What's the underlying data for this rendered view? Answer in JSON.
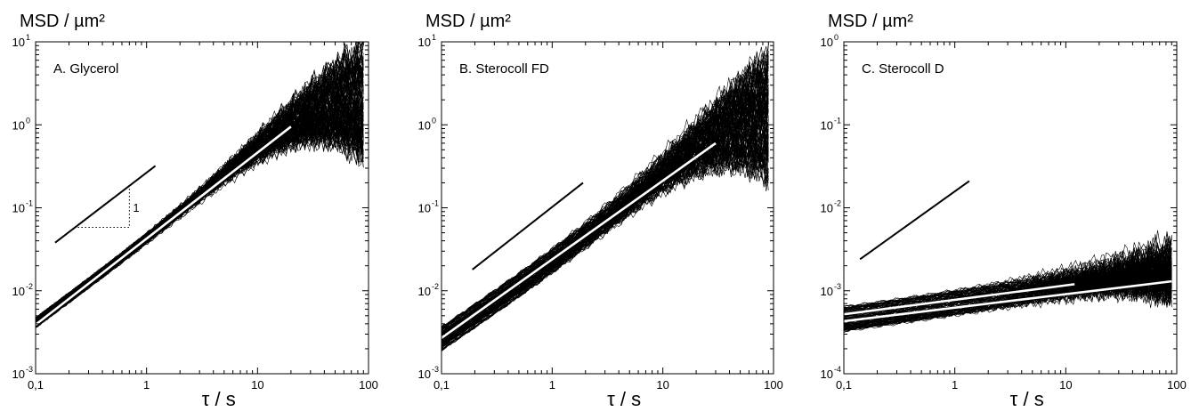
{
  "chart_data": [
    {
      "type": "line",
      "panel_label": "A. Glycerol",
      "ylabel": "MSD / µm²",
      "xlabel": "τ / s",
      "x_scale": "log",
      "y_scale": "log",
      "xlim": [
        0.1,
        100
      ],
      "ylim": [
        0.001,
        10
      ],
      "x_ticks": [
        "0,1",
        "1",
        "10",
        "100"
      ],
      "y_ticks": [
        {
          "base": "10",
          "exp": "-3"
        },
        {
          "base": "10",
          "exp": "-2"
        },
        {
          "base": "10",
          "exp": "-1"
        },
        {
          "base": "10",
          "exp": "0"
        },
        {
          "base": "10",
          "exp": "1"
        }
      ],
      "trajectory_bundle": {
        "count": 130,
        "x_start": 0.1,
        "x_end": 90,
        "y_at_start_range": [
          0.0036,
          0.0047
        ],
        "slope": 1.0,
        "spread_at_end_range": [
          0.3,
          10
        ]
      },
      "mean_curve": {
        "color": "#ffffff",
        "x": [
          0.1,
          20
        ],
        "y": [
          0.0039,
          0.95
        ]
      },
      "reference_line": {
        "slope": 1,
        "x": [
          0.15,
          1.2
        ],
        "y": [
          0.038,
          0.32
        ]
      },
      "slope_triangle": {
        "x_corner": 0.7,
        "y_base": 0.058,
        "y_top": 0.17,
        "x_left": 0.24,
        "label": "1"
      },
      "grid": false,
      "legend": "none"
    },
    {
      "type": "line",
      "panel_label": "B. Sterocoll FD",
      "ylabel": "MSD / µm²",
      "xlabel": "τ / s",
      "x_scale": "log",
      "y_scale": "log",
      "xlim": [
        0.1,
        100
      ],
      "ylim": [
        0.001,
        10
      ],
      "x_ticks": [
        "0,1",
        "1",
        "10",
        "100"
      ],
      "y_ticks": [
        {
          "base": "10",
          "exp": "-3"
        },
        {
          "base": "10",
          "exp": "-2"
        },
        {
          "base": "10",
          "exp": "-1"
        },
        {
          "base": "10",
          "exp": "0"
        },
        {
          "base": "10",
          "exp": "1"
        }
      ],
      "trajectory_bundle": {
        "count": 130,
        "x_start": 0.1,
        "x_end": 90,
        "y_at_start_range": [
          0.0019,
          0.0037
        ],
        "slope": 0.92,
        "spread_at_end_range": [
          0.2,
          8
        ]
      },
      "mean_curve": {
        "color": "#ffffff",
        "x": [
          0.1,
          30
        ],
        "y": [
          0.0027,
          0.6
        ]
      },
      "reference_line": {
        "slope": 1,
        "x": [
          0.19,
          1.9
        ],
        "y": [
          0.018,
          0.2
        ]
      },
      "grid": false,
      "legend": "none"
    },
    {
      "type": "line",
      "panel_label": "C. Sterocoll D",
      "ylabel": "MSD / µm²",
      "xlabel": "τ / s",
      "x_scale": "log",
      "y_scale": "log",
      "xlim": [
        0.1,
        100
      ],
      "ylim": [
        0.0001,
        1
      ],
      "x_ticks": [
        "0,1",
        "1",
        "10",
        "100"
      ],
      "y_ticks": [
        {
          "base": "10",
          "exp": "-4"
        },
        {
          "base": "10",
          "exp": "-3"
        },
        {
          "base": "10",
          "exp": "-2"
        },
        {
          "base": "10",
          "exp": "-1"
        },
        {
          "base": "10",
          "exp": "0"
        }
      ],
      "trajectory_bundle": {
        "count": 110,
        "x_start": 0.1,
        "x_end": 90,
        "y_at_start_range": [
          0.00032,
          0.00065
        ],
        "slope": 0.19,
        "spread_at_end_range": [
          0.0009,
          0.0037
        ]
      },
      "mean_curves": [
        {
          "color": "#ffffff",
          "x": [
            0.1,
            12
          ],
          "y": [
            0.00052,
            0.0012
          ]
        },
        {
          "color": "#ffffff",
          "x": [
            0.1,
            90
          ],
          "y": [
            0.00043,
            0.0013
          ]
        }
      ],
      "reference_line": {
        "slope": 1,
        "x": [
          0.14,
          1.35
        ],
        "y": [
          0.0024,
          0.021
        ]
      },
      "grid": false,
      "legend": "none"
    }
  ]
}
